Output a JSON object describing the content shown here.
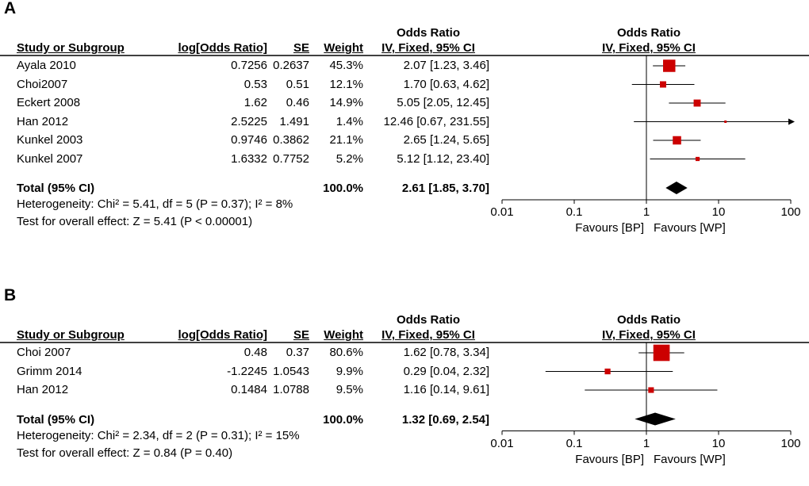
{
  "header": {
    "study": "Study or Subgroup",
    "logor": "log[Odds Ratio]",
    "se": "SE",
    "weight": "Weight",
    "or_title": "Odds Ratio",
    "or_method": "IV, Fixed, 95% CI",
    "plot_title": "Odds Ratio",
    "plot_method": "IV, Fixed, 95% CI"
  },
  "colors": {
    "marker": "#cc0000",
    "diamond": "#000000",
    "line": "#000000"
  },
  "chart_data": [
    {
      "type": "forest",
      "panel": "A",
      "xscale": "log",
      "xlim": [
        0.01,
        100
      ],
      "ticks": [
        "0.01",
        "0.1",
        "1",
        "10",
        "100"
      ],
      "tick_values": [
        0.01,
        0.1,
        1,
        10,
        100
      ],
      "xlabel_left": "Favours [BP]",
      "xlabel_right": "Favours [WP]",
      "studies": [
        {
          "name": "Ayala 2010",
          "logor": "0.7256",
          "se": "0.2637",
          "weight": "45.3%",
          "ci_text": "2.07 [1.23, 3.46]",
          "or": 2.07,
          "lo": 1.23,
          "hi": 3.46,
          "w": 45.3,
          "arrow": false
        },
        {
          "name": "Choi2007",
          "logor": "0.53",
          "se": "0.51",
          "weight": "12.1%",
          "ci_text": "1.70 [0.63, 4.62]",
          "or": 1.7,
          "lo": 0.63,
          "hi": 4.62,
          "w": 12.1,
          "arrow": false
        },
        {
          "name": "Eckert 2008",
          "logor": "1.62",
          "se": "0.46",
          "weight": "14.9%",
          "ci_text": "5.05 [2.05, 12.45]",
          "or": 5.05,
          "lo": 2.05,
          "hi": 12.45,
          "w": 14.9,
          "arrow": false
        },
        {
          "name": "Han 2012",
          "logor": "2.5225",
          "se": "1.491",
          "weight": "1.4%",
          "ci_text": "12.46 [0.67, 231.55]",
          "or": 12.46,
          "lo": 0.67,
          "hi": 231.55,
          "w": 1.4,
          "arrow": true
        },
        {
          "name": "Kunkel 2003",
          "logor": "0.9746",
          "se": "0.3862",
          "weight": "21.1%",
          "ci_text": "2.65 [1.24, 5.65]",
          "or": 2.65,
          "lo": 1.24,
          "hi": 5.65,
          "w": 21.1,
          "arrow": false
        },
        {
          "name": "Kunkel 2007",
          "logor": "1.6332",
          "se": "0.7752",
          "weight": "5.2%",
          "ci_text": "5.12 [1.12, 23.40]",
          "or": 5.12,
          "lo": 1.12,
          "hi": 23.4,
          "w": 5.2,
          "arrow": false
        }
      ],
      "total": {
        "label": "Total (95% CI)",
        "weight": "100.0%",
        "ci_text": "2.61 [1.85, 3.70]",
        "or": 2.61,
        "lo": 1.85,
        "hi": 3.7
      },
      "heterogeneity": "Heterogeneity: Chi² = 5.41, df = 5 (P = 0.37); I² = 8%",
      "overall": "Test for overall effect: Z = 5.41 (P < 0.00001)"
    },
    {
      "type": "forest",
      "panel": "B",
      "xscale": "log",
      "xlim": [
        0.01,
        100
      ],
      "ticks": [
        "0.01",
        "0.1",
        "1",
        "10",
        "100"
      ],
      "tick_values": [
        0.01,
        0.1,
        1,
        10,
        100
      ],
      "xlabel_left": "Favours [BP]",
      "xlabel_right": "Favours [WP]",
      "studies": [
        {
          "name": "Choi 2007",
          "logor": "0.48",
          "se": "0.37",
          "weight": "80.6%",
          "ci_text": "1.62 [0.78, 3.34]",
          "or": 1.62,
          "lo": 0.78,
          "hi": 3.34,
          "w": 80.6,
          "arrow": false
        },
        {
          "name": "Grimm 2014",
          "logor": "-1.2245",
          "se": "1.0543",
          "weight": "9.9%",
          "ci_text": "0.29 [0.04, 2.32]",
          "or": 0.29,
          "lo": 0.04,
          "hi": 2.32,
          "w": 9.9,
          "arrow": false
        },
        {
          "name": "Han 2012",
          "logor": "0.1484",
          "se": "1.0788",
          "weight": "9.5%",
          "ci_text": "1.16 [0.14, 9.61]",
          "or": 1.16,
          "lo": 0.14,
          "hi": 9.61,
          "w": 9.5,
          "arrow": false
        }
      ],
      "total": {
        "label": "Total (95% CI)",
        "weight": "100.0%",
        "ci_text": "1.32 [0.69, 2.54]",
        "or": 1.32,
        "lo": 0.69,
        "hi": 2.54
      },
      "heterogeneity": "Heterogeneity: Chi² = 2.34, df = 2 (P = 0.31); I² = 15%",
      "overall": "Test for overall effect: Z = 0.84 (P = 0.40)"
    }
  ]
}
